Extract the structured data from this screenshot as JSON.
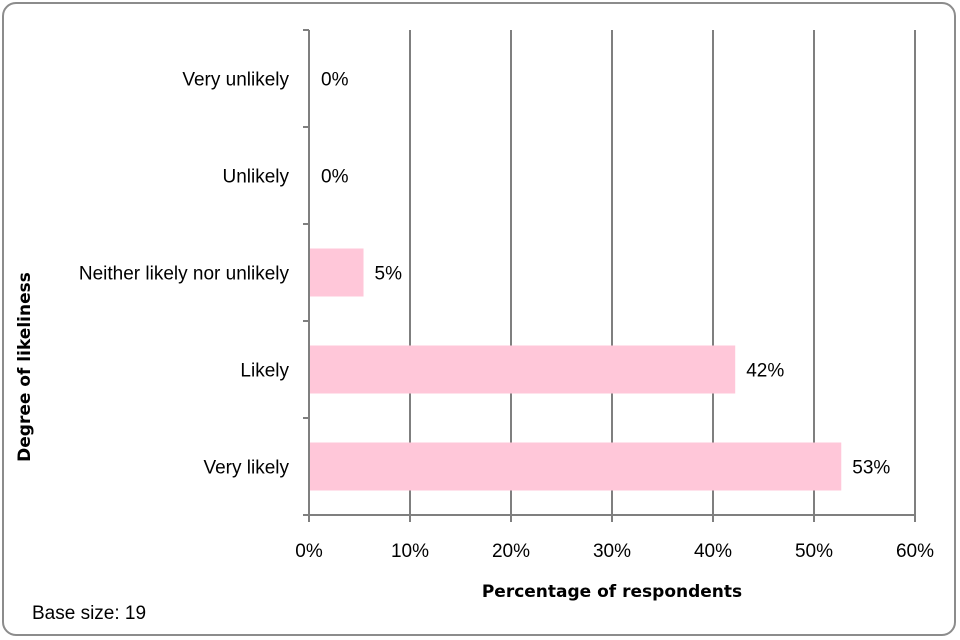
{
  "chart_data": {
    "type": "bar",
    "orientation": "horizontal",
    "categories": [
      "Very unlikely",
      "Unlikely",
      "Neither likely nor unlikely",
      "Likely",
      "Very likely"
    ],
    "values": [
      0,
      0,
      5.3,
      42.1,
      52.6
    ],
    "data_labels": [
      "0%",
      "0%",
      "5%",
      "42%",
      "53%"
    ],
    "xlabel": "Percentage of respondents",
    "ylabel": "Degree of likeliness",
    "xlim": [
      0,
      60
    ],
    "xticks": [
      0,
      10,
      20,
      30,
      40,
      50,
      60
    ],
    "xtick_labels": [
      "0%",
      "10%",
      "20%",
      "30%",
      "40%",
      "50%",
      "60%"
    ],
    "grid": "vertical",
    "bar_color": "#ffc7d9",
    "grid_color": "#7f7f7f"
  },
  "note": "Base size: 19"
}
